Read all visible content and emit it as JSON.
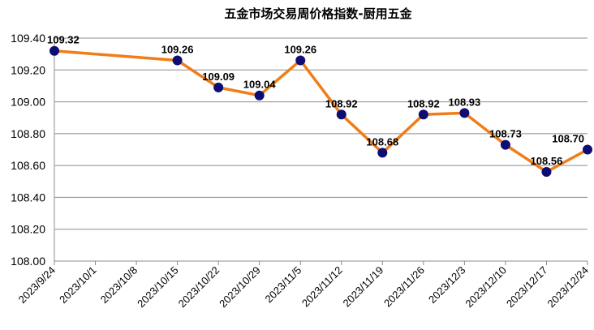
{
  "chart_data": {
    "type": "line",
    "title": "五金市场交易周价格指数-厨用五金",
    "xlabel": "",
    "ylabel": "",
    "ylim": [
      108.0,
      109.4
    ],
    "yticks": [
      "108.00",
      "108.20",
      "108.40",
      "108.60",
      "108.80",
      "109.00",
      "109.20",
      "109.40"
    ],
    "grid": true,
    "legend": "none",
    "x": [
      "2023/9/24",
      "2023/10/1",
      "2023/10/8",
      "2023/10/15",
      "2023/10/22",
      "2023/10/29",
      "2023/11/5",
      "2023/11/12",
      "2023/11/19",
      "2023/11/26",
      "2023/12/3",
      "2023/12/10",
      "2023/12/17",
      "2023/12/24"
    ],
    "series": [
      {
        "values": [
          109.32,
          null,
          null,
          109.26,
          109.09,
          109.04,
          109.26,
          108.92,
          108.68,
          108.92,
          108.93,
          108.73,
          108.56,
          108.7
        ],
        "labels": [
          "109.32",
          "",
          "",
          "109.26",
          "109.09",
          "109.04",
          "109.26",
          "108.92",
          "108.68",
          "108.92",
          "108.93",
          "108.73",
          "108.56",
          "108.70"
        ],
        "color": "#F07D18",
        "marker_color": "#0D0D73"
      }
    ]
  }
}
